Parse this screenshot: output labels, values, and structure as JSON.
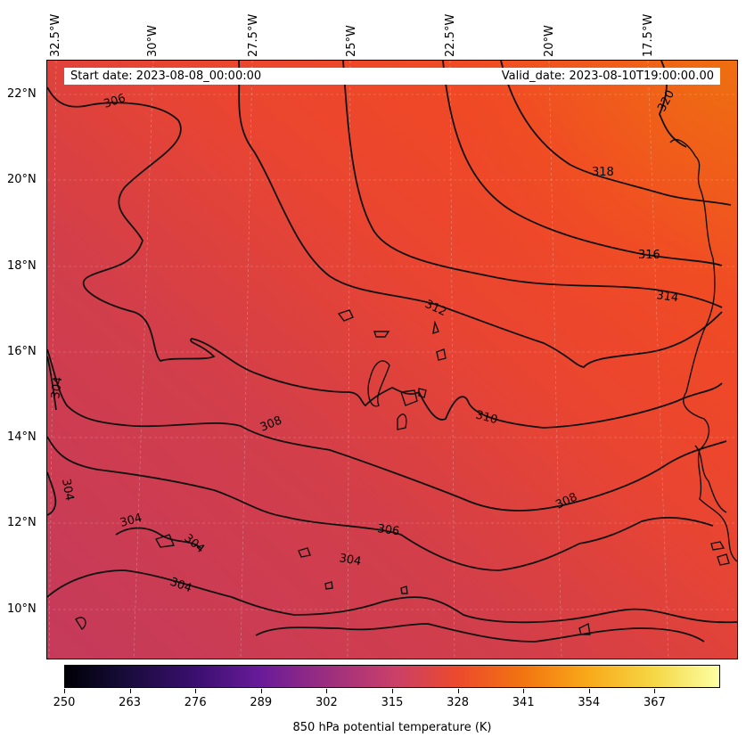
{
  "map": {
    "info": {
      "start_date": "Start date: 2023-08-08_00:00:00",
      "valid_date": "Valid_date: 2023-08-10T19:00:00.00"
    },
    "longitude_labels": [
      "32.5°W",
      "30°W",
      "27.5°W",
      "25°W",
      "22.5°W",
      "20°W",
      "17.5°W"
    ],
    "latitude_labels": [
      "22°N",
      "20°N",
      "18°N",
      "16°N",
      "14°N",
      "12°N",
      "10°N"
    ],
    "contour_labels": [
      "306",
      "320",
      "318",
      "316",
      "314",
      "312",
      "310",
      "308",
      "308",
      "304",
      "304",
      "304",
      "304",
      "306",
      "304",
      "304"
    ],
    "colorbar": {
      "title": "850 hPa potential temperature (K)",
      "ticks": [
        "250",
        "263",
        "276",
        "289",
        "302",
        "315",
        "328",
        "341",
        "354",
        "367"
      ],
      "colormap": [
        "#000004",
        "#3b0f70",
        "#9c2e7f",
        "#c83f6a",
        "#ec4a2d",
        "#f27410",
        "#f9a91a",
        "#fcffa4"
      ]
    },
    "field_colors": {
      "cool": "#c8395a",
      "mid": "#e4423c",
      "warm": "#f04a28",
      "hot": "#ef6a14"
    }
  }
}
